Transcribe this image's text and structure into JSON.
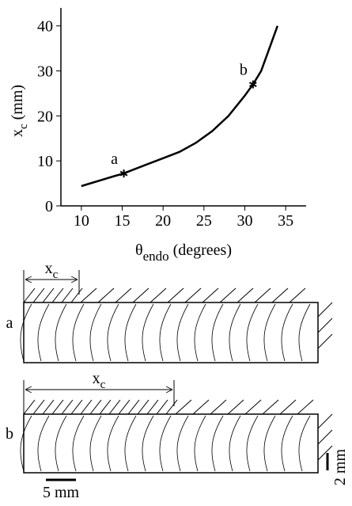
{
  "chart_data": {
    "type": "line",
    "xlabel": {
      "main": "θ",
      "sub": "endo",
      "rest": " (degrees)"
    },
    "ylabel": {
      "main": "x",
      "sub": "c",
      "rest": " (mm)"
    },
    "xlim": [
      7.5,
      37.5
    ],
    "xticks": [
      10,
      15,
      20,
      25,
      30,
      35
    ],
    "ylim": [
      0,
      44
    ],
    "yticks": [
      0,
      10,
      20,
      30,
      40
    ],
    "series": [
      {
        "color": "#000000",
        "x": [
          10,
          12,
          14,
          15.2,
          16,
          18,
          20,
          22,
          24,
          26,
          28,
          30,
          31,
          32,
          33,
          34
        ],
        "values": [
          4.4,
          5.5,
          6.6,
          7.2,
          7.8,
          9.2,
          10.6,
          12,
          14,
          16.6,
          20,
          24.5,
          27,
          30,
          35,
          40
        ]
      },
      {
        "color": "#000000",
        "x": [
          15.2,
          31
        ],
        "values": [
          7.2,
          27
        ],
        "point_labels": [
          "a",
          "b"
        ]
      }
    ]
  },
  "diagrams": {
    "panels": [
      {
        "label": "a",
        "span_label": {
          "main": "x",
          "sub": "c"
        }
      },
      {
        "label": "b",
        "span_label": {
          "main": "x",
          "sub": "c"
        }
      }
    ],
    "scale_x": "5 mm",
    "scale_y": "2 mm"
  }
}
